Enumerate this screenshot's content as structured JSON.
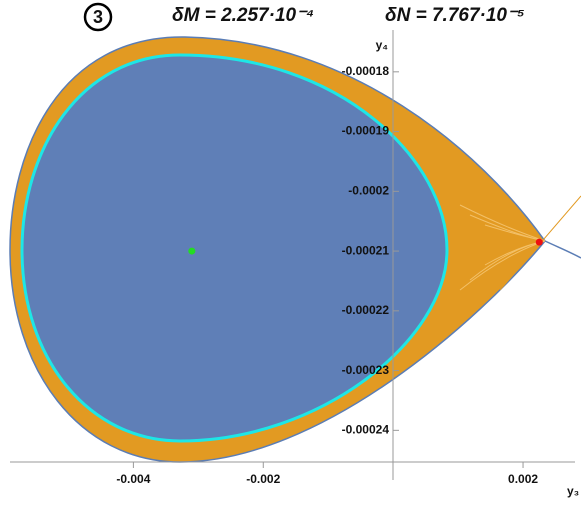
{
  "chart_data": {
    "type": "phase-portrait",
    "panel_label": "3",
    "title_parts": [
      "δM = 2.257·10⁻⁴",
      "δN = 7.767·10⁻⁵"
    ],
    "x_label": "y₃",
    "y_label": "y₄",
    "xlim": [
      -0.0059,
      0.0028
    ],
    "ylim": [
      -0.0002453,
      -0.000173
    ],
    "xticks": [
      -0.004,
      -0.002,
      0.002
    ],
    "yticks": [
      -0.00018,
      -0.00019,
      -0.0002,
      -0.00021,
      -0.00022,
      -0.00023,
      -0.00024
    ],
    "points": [
      {
        "name": "center",
        "color": "#22dd22",
        "x": -0.0031,
        "y": -0.00021
      },
      {
        "name": "saddle",
        "color": "#ee1111",
        "x": 0.00225,
        "y": -0.0002085
      }
    ]
  }
}
